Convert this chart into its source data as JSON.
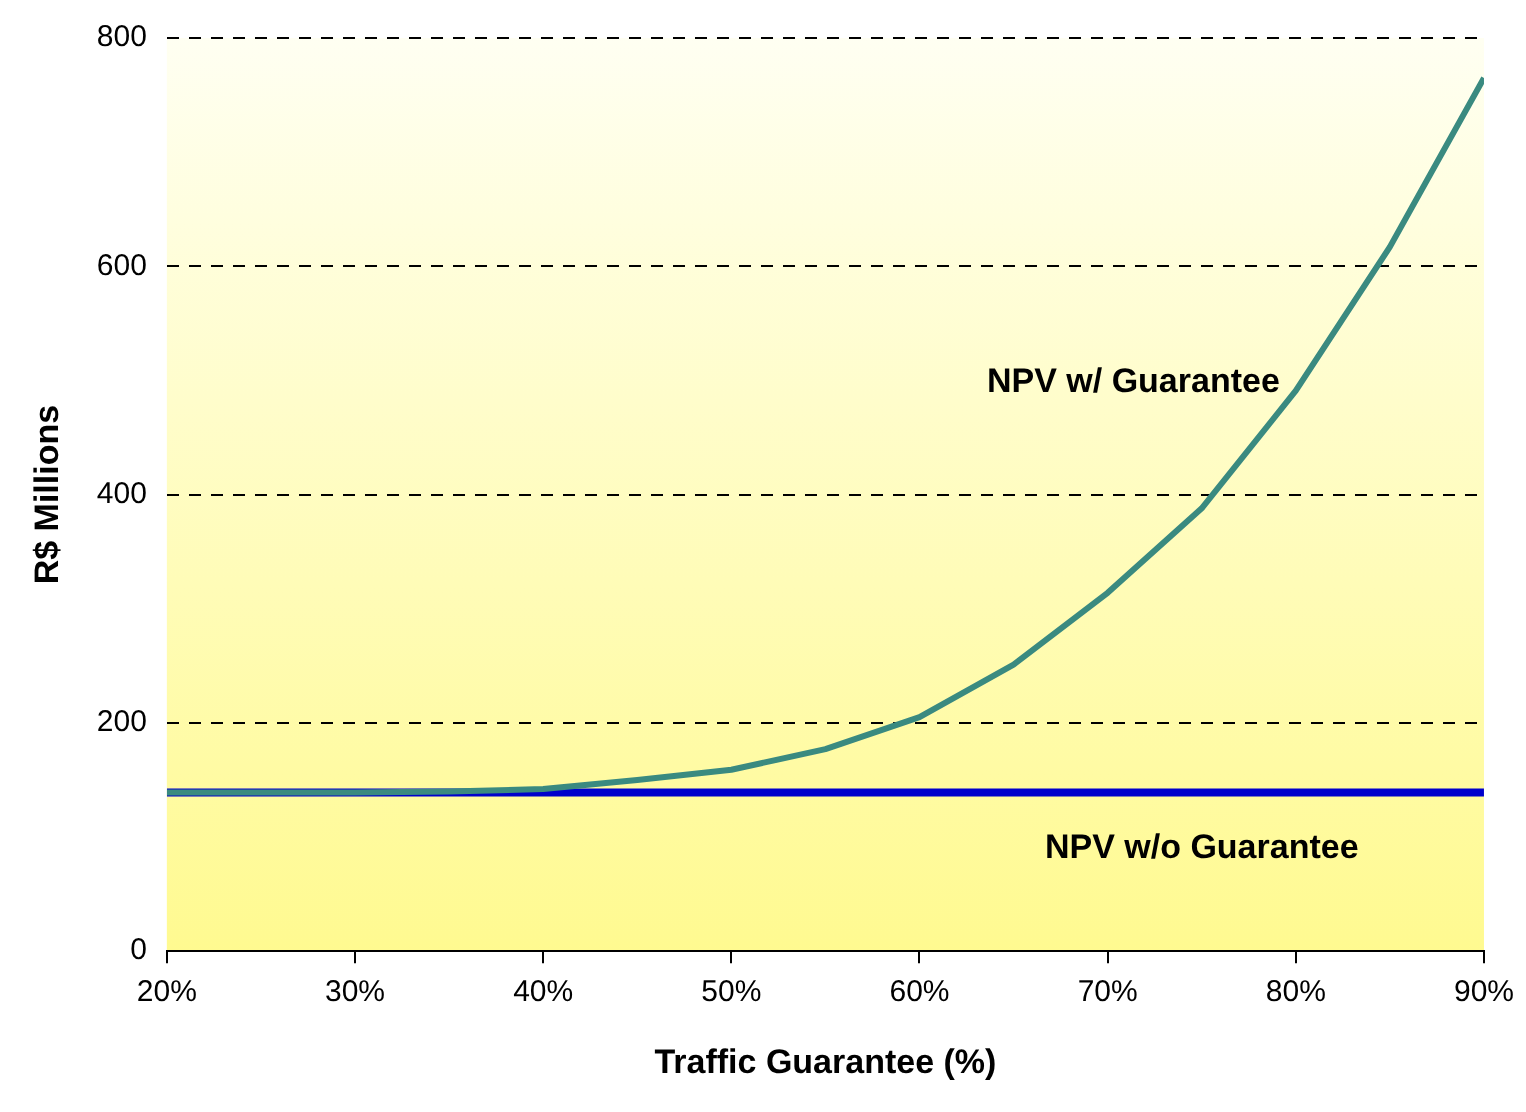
{
  "chart_data": {
    "type": "line",
    "xlabel": "Traffic Guarantee (%)",
    "ylabel": "R$ Millions",
    "x": [
      20,
      25,
      30,
      35,
      40,
      45,
      50,
      55,
      60,
      65,
      70,
      75,
      80,
      85,
      90
    ],
    "xlim": [
      20,
      90
    ],
    "xticks": [
      {
        "value": 20,
        "label": "20%"
      },
      {
        "value": 30,
        "label": "30%"
      },
      {
        "value": 40,
        "label": "40%"
      },
      {
        "value": 50,
        "label": "50%"
      },
      {
        "value": 60,
        "label": "60%"
      },
      {
        "value": 70,
        "label": "70%"
      },
      {
        "value": 80,
        "label": "80%"
      },
      {
        "value": 90,
        "label": "90%"
      }
    ],
    "ylim": [
      0,
      800
    ],
    "yticks": [
      0,
      200,
      400,
      600,
      800
    ],
    "grid": "y",
    "legend": false,
    "marker": "none",
    "line_style": "solid",
    "series": [
      {
        "name": "NPV w/ Guarantee",
        "color": "#3a8a80",
        "values": [
          139,
          139,
          139,
          140,
          142,
          150,
          159,
          177,
          205,
          251,
          314,
          388,
          491,
          617,
          765
        ]
      },
      {
        "name": "NPV w/o Guarantee",
        "color": "#0000cc",
        "values": [
          139,
          139,
          139,
          139,
          139,
          139,
          139,
          139,
          139,
          139,
          139,
          139,
          139,
          139,
          139
        ]
      }
    ]
  }
}
